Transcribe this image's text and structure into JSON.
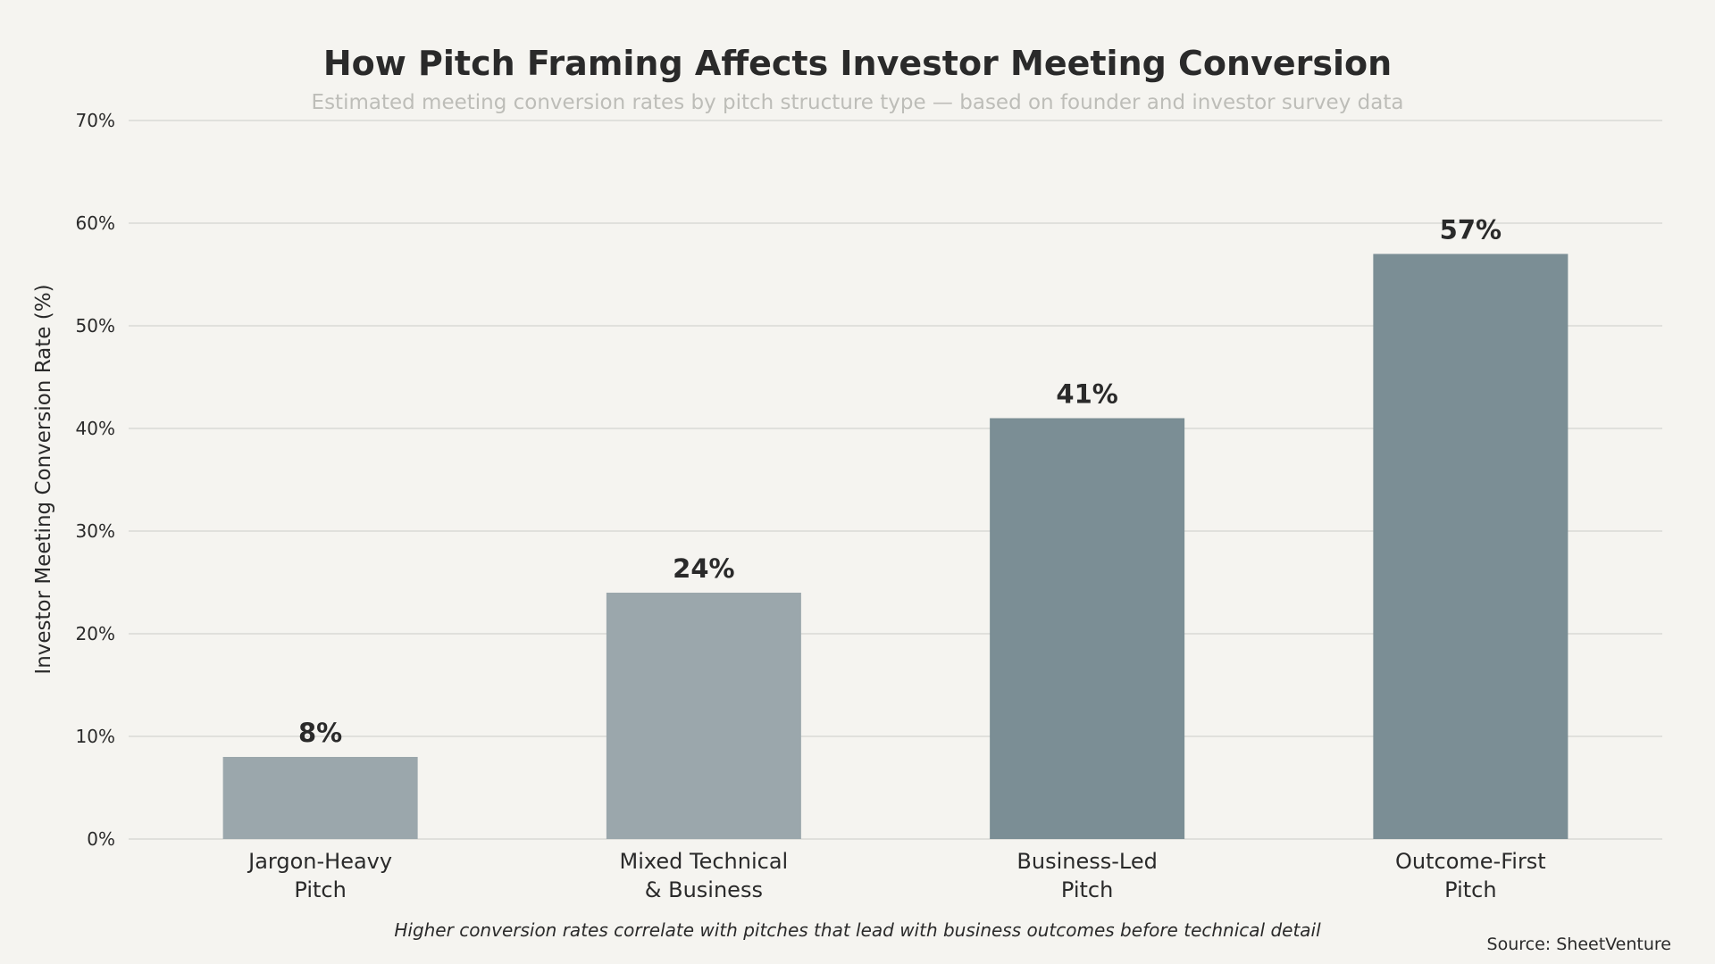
{
  "chart_data": {
    "type": "bar",
    "title": "How Pitch Framing Affects Investor Meeting Conversion",
    "subtitle": "Estimated meeting conversion rates by pitch structure type — based on founder and investor survey data",
    "xlabel": "",
    "ylabel": "Investor Meeting Conversion Rate (%)",
    "ylim": [
      0,
      70
    ],
    "yticks": [
      0,
      10,
      20,
      30,
      40,
      50,
      60,
      70
    ],
    "ytick_labels": [
      "0%",
      "10%",
      "20%",
      "30%",
      "40%",
      "50%",
      "60%",
      "70%"
    ],
    "grid": "horizontal",
    "categories": [
      [
        "Jargon-Heavy",
        "Pitch"
      ],
      [
        "Mixed Technical",
        "& Business"
      ],
      [
        "Business-Led",
        "Pitch"
      ],
      [
        "Outcome-First",
        "Pitch"
      ]
    ],
    "values": [
      8,
      24,
      41,
      57
    ],
    "data_labels": [
      "8%",
      "24%",
      "41%",
      "57%"
    ],
    "bar_colors": [
      "#9BA7AC",
      "#9BA7AC",
      "#7B8E95",
      "#7B8E95"
    ],
    "annotation": "Higher conversion rates correlate with pitches that lead with business outcomes before technical detail",
    "source": "Source: SheetVenture"
  },
  "colors": {
    "background": "#F5F4F0",
    "grid": "#DAD9D5"
  }
}
